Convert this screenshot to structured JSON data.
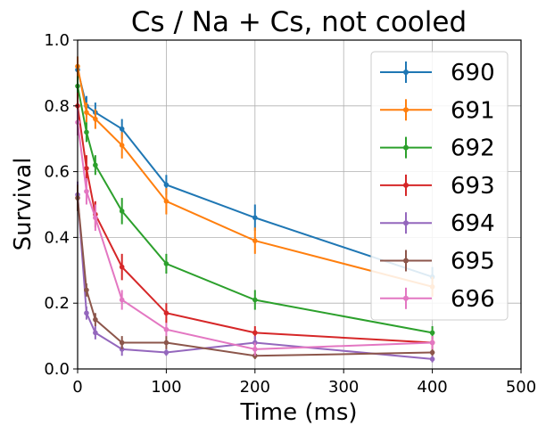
{
  "chart_data": {
    "type": "line",
    "title": "Cs / Na + Cs, not cooled",
    "xlabel": "Time (ms)",
    "ylabel": "Survival",
    "xlim": [
      0,
      500
    ],
    "ylim": [
      0,
      1.0
    ],
    "xticks": [
      0,
      100,
      200,
      300,
      400,
      500
    ],
    "yticks": [
      0.0,
      0.2,
      0.4,
      0.6,
      0.8,
      1.0
    ],
    "xtick_labels": [
      "0",
      "100",
      "200",
      "300",
      "400",
      "500"
    ],
    "ytick_labels": [
      "0.0",
      "0.2",
      "0.4",
      "0.6",
      "0.8",
      "1.0"
    ],
    "grid": true,
    "legend_position": "top-right",
    "x": [
      0,
      10,
      20,
      50,
      100,
      200,
      400
    ],
    "series": [
      {
        "name": "690",
        "color": "#1f77b4",
        "values": [
          0.91,
          0.8,
          0.78,
          0.73,
          0.56,
          0.46,
          0.28
        ],
        "errors": [
          0.03,
          0.03,
          0.03,
          0.03,
          0.03,
          0.04,
          0.03
        ]
      },
      {
        "name": "691",
        "color": "#ff7f0e",
        "values": [
          0.92,
          0.78,
          0.76,
          0.68,
          0.51,
          0.39,
          0.25
        ],
        "errors": [
          0.03,
          0.03,
          0.03,
          0.04,
          0.04,
          0.04,
          0.03
        ]
      },
      {
        "name": "692",
        "color": "#2ca02c",
        "values": [
          0.86,
          0.72,
          0.62,
          0.48,
          0.32,
          0.21,
          0.11
        ],
        "errors": [
          0.03,
          0.03,
          0.03,
          0.04,
          0.03,
          0.03,
          0.02
        ]
      },
      {
        "name": "693",
        "color": "#d62728",
        "values": [
          0.8,
          0.61,
          0.47,
          0.31,
          0.17,
          0.11,
          0.08
        ],
        "errors": [
          0.04,
          0.04,
          0.04,
          0.04,
          0.03,
          0.02,
          0.02
        ]
      },
      {
        "name": "694",
        "color": "#9467bd",
        "values": [
          0.53,
          0.17,
          0.11,
          0.06,
          0.05,
          0.08,
          0.03
        ],
        "errors": [
          0.04,
          0.02,
          0.02,
          0.02,
          0.01,
          0.02,
          0.01
        ]
      },
      {
        "name": "695",
        "color": "#8c564b",
        "values": [
          0.52,
          0.24,
          0.15,
          0.08,
          0.08,
          0.04,
          0.05
        ],
        "errors": [
          0.04,
          0.02,
          0.02,
          0.02,
          0.02,
          0.01,
          0.01
        ]
      },
      {
        "name": "696",
        "color": "#e377c2",
        "values": [
          0.75,
          0.54,
          0.46,
          0.21,
          0.12,
          0.06,
          0.08
        ],
        "errors": [
          0.04,
          0.04,
          0.04,
          0.03,
          0.02,
          0.02,
          0.02
        ]
      }
    ]
  }
}
